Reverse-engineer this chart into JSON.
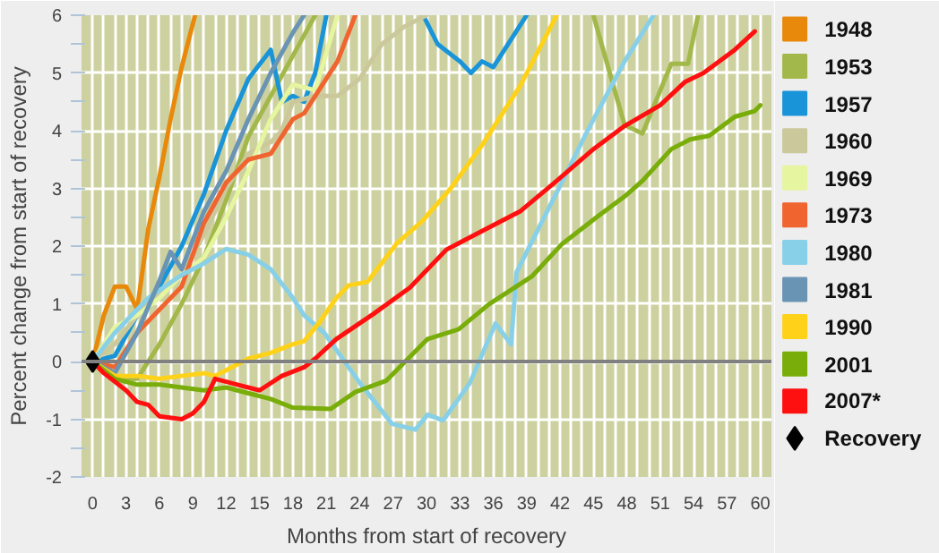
{
  "chart_data": {
    "type": "line",
    "xlabel": "Months from start of recovery",
    "ylabel": "Percent change from start of recovery",
    "xlim": [
      -1,
      61
    ],
    "ylim": [
      -2,
      6
    ],
    "xticks": [
      0,
      {
        "value": 1,
        "label": null
      },
      {
        "value": 2,
        "label": null
      },
      3,
      {
        "value": 4,
        "label": null
      },
      {
        "value": 5,
        "label": null
      },
      6,
      {
        "value": 7,
        "label": null
      },
      {
        "value": 8,
        "label": null
      },
      9,
      {
        "value": 10,
        "label": null
      },
      {
        "value": 11,
        "label": null
      },
      12,
      {
        "value": 13,
        "label": null
      },
      {
        "value": 14,
        "label": null
      },
      15,
      {
        "value": 16,
        "label": null
      },
      {
        "value": 17,
        "label": null
      },
      18,
      {
        "value": 19,
        "label": null
      },
      {
        "value": 20,
        "label": null
      },
      21,
      {
        "value": 22,
        "label": null
      },
      {
        "value": 23,
        "label": null
      },
      24,
      {
        "value": 25,
        "label": null
      },
      {
        "value": 26,
        "label": null
      },
      27,
      {
        "value": 28,
        "label": null
      },
      {
        "value": 29,
        "label": null
      },
      30,
      {
        "value": 31,
        "label": null
      },
      {
        "value": 32,
        "label": null
      },
      33,
      {
        "value": 34,
        "label": null
      },
      {
        "value": 35,
        "label": null
      },
      36,
      {
        "value": 37,
        "label": null
      },
      {
        "value": 38,
        "label": null
      },
      39,
      {
        "value": 40,
        "label": null
      },
      {
        "value": 41,
        "label": null
      },
      42,
      {
        "value": 43,
        "label": null
      },
      {
        "value": 44,
        "label": null
      },
      45,
      {
        "value": 46,
        "label": null
      },
      {
        "value": 47,
        "label": null
      },
      48,
      {
        "value": 49,
        "label": null
      },
      {
        "value": 50,
        "label": null
      },
      51,
      {
        "value": 52,
        "label": null
      },
      {
        "value": 53,
        "label": null
      },
      54,
      {
        "value": 55,
        "label": null
      },
      {
        "value": 56,
        "label": null
      },
      57,
      {
        "value": 58,
        "label": null
      },
      {
        "value": 59,
        "label": null
      },
      60
    ],
    "yticks": [
      -2,
      {
        "value": -1.5,
        "label": null
      },
      -1,
      {
        "value": -0.5,
        "label": null
      },
      0,
      {
        "value": 0.5,
        "label": null
      },
      1,
      {
        "value": 1.5,
        "label": null
      },
      2,
      {
        "value": 2.5,
        "label": null
      },
      3,
      {
        "value": 3.5,
        "label": null
      },
      4,
      {
        "value": 4.5,
        "label": null
      },
      5,
      {
        "value": 5.5,
        "label": null
      },
      6
    ],
    "grid": true,
    "legend": "right",
    "ref_lines": [
      {
        "axis": "y",
        "value": 0,
        "color": "#808080"
      }
    ],
    "series": [
      {
        "name": "1948",
        "color": "#e8890c",
        "x": [
          0,
          1,
          2,
          3,
          4,
          5,
          6,
          7,
          8,
          9.2
        ],
        "values": [
          0,
          0.8,
          1.3,
          1.3,
          0.9,
          2.3,
          3.2,
          4.2,
          5.1,
          6
        ]
      },
      {
        "name": "1953",
        "color": "#a3b84a",
        "x": [
          0,
          2,
          4,
          6,
          8,
          10,
          12,
          14,
          16,
          18,
          20,
          30,
          45,
          47.1,
          47.8,
          49.4,
          49.9,
          52,
          53.5,
          54.4
        ],
        "values": [
          0,
          -0.3,
          -0.3,
          0.3,
          1,
          1.8,
          2.8,
          3.9,
          4.6,
          5.3,
          6,
          null,
          6,
          4.57,
          4.1,
          3.95,
          4.18,
          5.16,
          5.16,
          6
        ]
      },
      {
        "name": "1957",
        "color": "#1a94d8",
        "x": [
          0,
          2,
          4,
          6,
          8,
          10,
          12,
          14,
          16,
          17,
          18,
          19,
          20,
          21,
          25,
          29.7,
          31,
          33,
          34,
          35,
          36,
          39
        ],
        "values": [
          0,
          0.1,
          0.8,
          1.3,
          2,
          2.9,
          4,
          4.9,
          5.4,
          4.5,
          4.6,
          4.5,
          5,
          6,
          null,
          6,
          5.5,
          5.2,
          5,
          5.2,
          5.1,
          6
        ]
      },
      {
        "name": "1960",
        "color": "#cbc89b",
        "x": [
          0,
          2,
          4,
          6,
          8,
          10,
          12,
          14,
          16,
          17,
          18,
          20,
          22,
          24,
          26,
          28,
          30
        ],
        "values": [
          0,
          0.3,
          0.8,
          1.2,
          1.5,
          2.2,
          3,
          3.6,
          3.8,
          4,
          4.5,
          4.6,
          4.6,
          4.9,
          5.5,
          5.8,
          6
        ]
      },
      {
        "name": "1969",
        "color": "#e6f5a0",
        "x": [
          0,
          2,
          4,
          6,
          8,
          10,
          12,
          14,
          16,
          18,
          20,
          22
        ],
        "values": [
          0,
          0.6,
          0.8,
          1.1,
          1.5,
          1.8,
          2.5,
          3.3,
          4.2,
          4.8,
          4.7,
          6
        ]
      },
      {
        "name": "1973",
        "color": "#f06430",
        "x": [
          0,
          2,
          4,
          6,
          8,
          10,
          12,
          14,
          16,
          18,
          19,
          21,
          22,
          23.6
        ],
        "values": [
          0,
          -0.1,
          0.5,
          0.9,
          1.3,
          2.4,
          3.1,
          3.5,
          3.6,
          4.2,
          4.3,
          4.9,
          5.2,
          6
        ]
      },
      {
        "name": "1980",
        "color": "#88d0e8",
        "x": [
          0,
          2,
          5,
          8,
          10,
          12,
          14,
          16,
          18,
          19,
          20.8,
          24,
          26.9,
          29,
          30.1,
          31.5,
          33.9,
          36.2,
          37.6,
          38.1,
          41.7,
          44.5,
          47.8,
          50.4
        ],
        "values": [
          0,
          0.5,
          1.1,
          1.5,
          1.7,
          1.95,
          1.85,
          1.6,
          1.1,
          0.8,
          0.5,
          -0.37,
          -1.08,
          -1.18,
          -0.92,
          -1.02,
          -0.37,
          0.66,
          0.3,
          1.55,
          2.93,
          4.01,
          5.2,
          6
        ]
      },
      {
        "name": "1981",
        "color": "#6a94b4",
        "x": [
          0,
          2,
          4,
          6,
          7,
          8,
          10,
          12,
          14,
          16,
          18,
          19
        ],
        "values": [
          0,
          -0.2,
          0.5,
          1.4,
          1.9,
          1.6,
          2.6,
          3.3,
          4.2,
          5,
          5.7,
          6
        ]
      },
      {
        "name": "1990",
        "color": "#ffd21a",
        "x": [
          0,
          2,
          4,
          6,
          8,
          10,
          11,
          12,
          14,
          16,
          18,
          19,
          20.3,
          21.9,
          23,
          24.7,
          27.3,
          29.6,
          32.3,
          35.1,
          38.4,
          41.7
        ],
        "values": [
          0,
          -0.25,
          -0.25,
          -0.3,
          -0.25,
          -0.2,
          -0.25,
          -0.15,
          0.05,
          0.15,
          0.3,
          0.35,
          0.66,
          1.1,
          1.32,
          1.38,
          2.04,
          2.43,
          3.03,
          3.78,
          4.77,
          6
        ]
      },
      {
        "name": "2001",
        "color": "#78ad0a",
        "x": [
          0,
          2,
          4,
          6,
          8,
          10,
          12,
          14,
          16,
          18,
          21.4,
          23.6,
          26.4,
          30.1,
          32.9,
          35.6,
          39.5,
          42.2,
          45.5,
          47.8,
          49.4,
          52,
          53.7,
          55.4,
          57.7,
          59.5,
          60
        ],
        "values": [
          0,
          -0.3,
          -0.4,
          -0.4,
          -0.45,
          -0.5,
          -0.45,
          -0.55,
          -0.65,
          -0.8,
          -0.82,
          -0.53,
          -0.33,
          0.39,
          0.56,
          0.99,
          1.48,
          2.04,
          2.53,
          2.86,
          3.13,
          3.68,
          3.85,
          3.91,
          4.24,
          4.34,
          4.44
        ]
      },
      {
        "name": "2007*",
        "color": "#ff1010",
        "x": [
          0,
          1,
          3,
          4,
          5,
          6,
          8,
          9,
          10,
          11,
          13,
          15,
          17,
          19,
          20,
          21.9,
          25.2,
          28.5,
          31.8,
          35.1,
          38.4,
          41.7,
          45,
          47.8,
          51,
          53.2,
          54.9,
          57.7,
          59.5
        ],
        "values": [
          0,
          -0.2,
          -0.5,
          -0.7,
          -0.75,
          -0.95,
          -1,
          -0.9,
          -0.7,
          -0.3,
          -0.4,
          -0.5,
          -0.25,
          -0.1,
          0.05,
          0.39,
          0.82,
          1.28,
          1.94,
          2.27,
          2.6,
          3.13,
          3.68,
          4.08,
          4.44,
          4.84,
          5,
          5.4,
          5.72
        ]
      },
      {
        "name": "Recovery",
        "type": "scatter",
        "marker": "diamond",
        "color": "#000000",
        "x": [
          0
        ],
        "values": [
          0
        ]
      }
    ]
  }
}
